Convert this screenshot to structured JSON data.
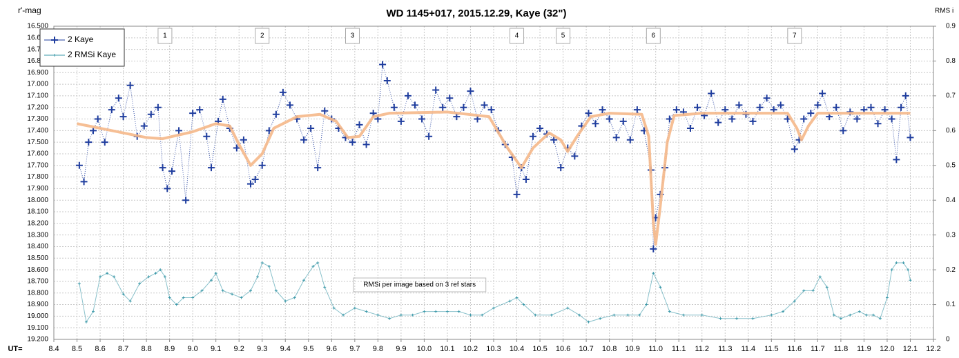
{
  "chart_data": {
    "type": "scatter",
    "title": "WD 1145+017, 2015.12.29,  Kaye (32\")",
    "y_label": "r'-mag",
    "y2_label": "RMS i",
    "x_label": "UT=",
    "annotation": "RMSi per image based on 3 ref stars",
    "markers": [
      {
        "text": "1",
        "x": 8.88
      },
      {
        "text": "2",
        "x": 9.3
      },
      {
        "text": "3",
        "x": 9.69
      },
      {
        "text": "4",
        "x": 10.4
      },
      {
        "text": "5",
        "x": 10.6
      },
      {
        "text": "6",
        "x": 10.99
      },
      {
        "text": "7",
        "x": 11.6
      }
    ],
    "xlim": [
      8.4,
      12.2
    ],
    "xticks": [
      8.4,
      8.5,
      8.6,
      8.7,
      8.8,
      8.9,
      {
        "value": 9,
        "label": "9.0"
      },
      9.1,
      9.2,
      9.3,
      9.4,
      9.5,
      9.6,
      9.7,
      9.8,
      9.9,
      {
        "value": 10,
        "label": "10.0"
      },
      10.1,
      10.2,
      10.3,
      10.4,
      10.5,
      10.6,
      10.7,
      10.8,
      10.9,
      {
        "value": 11,
        "label": "11.0"
      },
      11.1,
      11.2,
      11.3,
      11.4,
      11.5,
      11.6,
      11.7,
      11.8,
      11.9,
      {
        "value": 12,
        "label": "12.0"
      },
      12.1,
      12.2
    ],
    "ylim": [
      16.5,
      19.2
    ],
    "y_inverted": true,
    "yticks": [
      {
        "value": 16.5,
        "label": "16.500"
      },
      {
        "value": 16.6,
        "label": "16.600"
      },
      {
        "value": 16.7,
        "label": "16.700"
      },
      {
        "value": 16.8,
        "label": "16.800"
      },
      {
        "value": 16.9,
        "label": "16.900"
      },
      {
        "value": 17.0,
        "label": "17.000"
      },
      {
        "value": 17.1,
        "label": "17.100"
      },
      {
        "value": 17.2,
        "label": "17.200"
      },
      {
        "value": 17.3,
        "label": "17.300"
      },
      {
        "value": 17.4,
        "label": "17.400"
      },
      {
        "value": 17.5,
        "label": "17.500"
      },
      {
        "value": 17.6,
        "label": "17.600"
      },
      {
        "value": 17.7,
        "label": "17.700"
      },
      {
        "value": 17.8,
        "label": "17.800"
      },
      {
        "value": 17.9,
        "label": "17.900"
      },
      {
        "value": 18.0,
        "label": "18.000"
      },
      {
        "value": 18.1,
        "label": "18.100"
      },
      {
        "value": 18.2,
        "label": "18.200"
      },
      {
        "value": 18.3,
        "label": "18.300"
      },
      {
        "value": 18.4,
        "label": "18.400"
      },
      {
        "value": 18.5,
        "label": "18.500"
      },
      {
        "value": 18.6,
        "label": "18.600"
      },
      {
        "value": 18.7,
        "label": "18.700"
      },
      {
        "value": 18.8,
        "label": "18.800"
      },
      {
        "value": 18.9,
        "label": "18.900"
      },
      {
        "value": 19.0,
        "label": "19.000"
      },
      {
        "value": 19.1,
        "label": "19.100"
      },
      {
        "value": 19.2,
        "label": "19.200"
      }
    ],
    "y2lim": [
      0,
      0.9
    ],
    "y2ticks": [
      0,
      0.1,
      0.2,
      0.3,
      0.4,
      0.5,
      0.6,
      0.7,
      0.8,
      0.9
    ],
    "grid": true,
    "legend": "top-left",
    "series": [
      {
        "name": "2 Kaye",
        "color": "#1f3d9e",
        "x": [
          8.51,
          8.53,
          8.55,
          8.57,
          8.59,
          8.62,
          8.65,
          8.68,
          8.7,
          8.73,
          8.76,
          8.79,
          8.82,
          8.85,
          8.87,
          8.89,
          8.91,
          8.94,
          8.97,
          9.0,
          9.03,
          9.06,
          9.08,
          9.11,
          9.13,
          9.16,
          9.19,
          9.22,
          9.25,
          9.27,
          9.3,
          9.33,
          9.36,
          9.39,
          9.42,
          9.45,
          9.48,
          9.51,
          9.54,
          9.57,
          9.6,
          9.63,
          9.66,
          9.69,
          9.72,
          9.75,
          9.78,
          9.8,
          9.82,
          9.84,
          9.87,
          9.9,
          9.93,
          9.96,
          9.99,
          10.02,
          10.05,
          10.08,
          10.11,
          10.14,
          10.17,
          10.2,
          10.23,
          10.26,
          10.29,
          10.32,
          10.35,
          10.38,
          10.4,
          10.42,
          10.44,
          10.47,
          10.5,
          10.53,
          10.56,
          10.59,
          10.62,
          10.65,
          10.68,
          10.71,
          10.74,
          10.77,
          10.8,
          10.83,
          10.86,
          10.89,
          10.92,
          10.95,
          10.98,
          10.99,
          11.0,
          11.02,
          11.04,
          11.06,
          11.09,
          11.12,
          11.15,
          11.18,
          11.21,
          11.24,
          11.27,
          11.3,
          11.33,
          11.36,
          11.39,
          11.42,
          11.45,
          11.48,
          11.51,
          11.54,
          11.57,
          11.6,
          11.62,
          11.64,
          11.67,
          11.7,
          11.72,
          11.75,
          11.78,
          11.81,
          11.84,
          11.87,
          11.9,
          11.93,
          11.96,
          11.99,
          12.02,
          12.04,
          12.06,
          12.08,
          12.1
        ],
        "values": [
          17.7,
          17.84,
          17.5,
          17.4,
          17.3,
          17.5,
          17.22,
          17.12,
          17.28,
          17.01,
          17.45,
          17.36,
          17.26,
          17.2,
          17.72,
          17.9,
          17.75,
          17.4,
          18.0,
          17.25,
          17.22,
          17.45,
          17.72,
          17.32,
          17.13,
          17.38,
          17.55,
          17.48,
          17.86,
          17.82,
          17.7,
          17.4,
          17.26,
          17.07,
          17.18,
          17.3,
          17.48,
          17.38,
          17.72,
          17.23,
          17.3,
          17.38,
          17.46,
          17.5,
          17.35,
          17.52,
          17.25,
          17.3,
          16.83,
          16.97,
          17.2,
          17.32,
          17.1,
          17.18,
          17.3,
          17.45,
          17.05,
          17.2,
          17.12,
          17.28,
          17.2,
          17.06,
          17.3,
          17.18,
          17.22,
          17.4,
          17.52,
          17.63,
          17.95,
          17.72,
          17.82,
          17.45,
          17.38,
          17.43,
          17.48,
          17.72,
          17.55,
          17.62,
          17.36,
          17.25,
          17.34,
          17.22,
          17.3,
          17.46,
          17.32,
          17.48,
          17.22,
          17.4,
          17.74,
          18.42,
          18.15,
          17.95,
          17.72,
          17.3,
          17.22,
          17.24,
          17.38,
          17.2,
          17.27,
          17.08,
          17.33,
          17.22,
          17.3,
          17.18,
          17.26,
          17.32,
          17.2,
          17.12,
          17.22,
          17.18,
          17.3,
          17.56,
          17.48,
          17.3,
          17.25,
          17.18,
          17.08,
          17.28,
          17.2,
          17.4,
          17.24,
          17.3,
          17.22,
          17.2,
          17.34,
          17.22,
          17.3,
          17.65,
          17.2,
          17.1,
          17.46
        ]
      },
      {
        "name": "2 RMSi Kaye",
        "color": "#3a98a8",
        "axis": "y2",
        "x": [
          8.51,
          8.54,
          8.57,
          8.6,
          8.63,
          8.66,
          8.7,
          8.73,
          8.77,
          8.81,
          8.84,
          8.86,
          8.88,
          8.9,
          8.93,
          8.96,
          9.0,
          9.04,
          9.08,
          9.1,
          9.13,
          9.17,
          9.21,
          9.25,
          9.28,
          9.3,
          9.33,
          9.36,
          9.4,
          9.44,
          9.48,
          9.52,
          9.54,
          9.57,
          9.61,
          9.65,
          9.7,
          9.75,
          9.8,
          9.85,
          9.9,
          9.95,
          10.0,
          10.05,
          10.1,
          10.15,
          10.2,
          10.25,
          10.3,
          10.37,
          10.4,
          10.43,
          10.48,
          10.55,
          10.62,
          10.67,
          10.71,
          10.76,
          10.82,
          10.88,
          10.93,
          10.96,
          10.99,
          11.02,
          11.06,
          11.12,
          11.2,
          11.28,
          11.35,
          11.42,
          11.5,
          11.55,
          11.6,
          11.64,
          11.68,
          11.71,
          11.74,
          11.77,
          11.8,
          11.84,
          11.88,
          11.91,
          11.94,
          11.97,
          12.0,
          12.02,
          12.04,
          12.07,
          12.09,
          12.1
        ],
        "values": [
          0.16,
          0.05,
          0.08,
          0.18,
          0.19,
          0.18,
          0.13,
          0.11,
          0.16,
          0.18,
          0.19,
          0.2,
          0.18,
          0.12,
          0.1,
          0.12,
          0.12,
          0.14,
          0.17,
          0.19,
          0.14,
          0.13,
          0.12,
          0.14,
          0.18,
          0.22,
          0.21,
          0.14,
          0.11,
          0.12,
          0.17,
          0.21,
          0.22,
          0.15,
          0.09,
          0.07,
          0.09,
          0.08,
          0.07,
          0.06,
          0.07,
          0.07,
          0.08,
          0.08,
          0.08,
          0.08,
          0.07,
          0.07,
          0.09,
          0.11,
          0.12,
          0.1,
          0.07,
          0.07,
          0.09,
          0.07,
          0.05,
          0.06,
          0.07,
          0.07,
          0.07,
          0.1,
          0.19,
          0.15,
          0.08,
          0.07,
          0.07,
          0.06,
          0.06,
          0.06,
          0.07,
          0.08,
          0.11,
          0.14,
          0.14,
          0.18,
          0.15,
          0.07,
          0.06,
          0.07,
          0.08,
          0.07,
          0.07,
          0.06,
          0.12,
          0.2,
          0.22,
          0.22,
          0.2,
          0.17
        ]
      }
    ],
    "curve": {
      "color": "#f5b88a",
      "x": [
        8.5,
        8.65,
        8.8,
        8.87,
        9.0,
        9.1,
        9.16,
        9.2,
        9.25,
        9.3,
        9.35,
        9.45,
        9.55,
        9.62,
        9.67,
        9.72,
        9.78,
        9.85,
        10.1,
        10.28,
        10.36,
        10.42,
        10.47,
        10.54,
        10.59,
        10.62,
        10.66,
        10.72,
        10.8,
        10.94,
        10.97,
        10.99,
        11.0,
        11.02,
        11.05,
        11.08,
        11.2,
        11.57,
        11.61,
        11.63,
        11.66,
        11.7,
        12.1
      ],
      "values": [
        17.34,
        17.4,
        17.46,
        17.47,
        17.41,
        17.34,
        17.36,
        17.52,
        17.7,
        17.6,
        17.38,
        17.28,
        17.26,
        17.32,
        17.46,
        17.45,
        17.28,
        17.25,
        17.24,
        17.28,
        17.55,
        17.72,
        17.55,
        17.42,
        17.48,
        17.58,
        17.45,
        17.28,
        17.25,
        17.26,
        17.45,
        18.2,
        18.38,
        18.05,
        17.5,
        17.27,
        17.25,
        17.25,
        17.38,
        17.48,
        17.36,
        17.25,
        17.25
      ]
    }
  }
}
